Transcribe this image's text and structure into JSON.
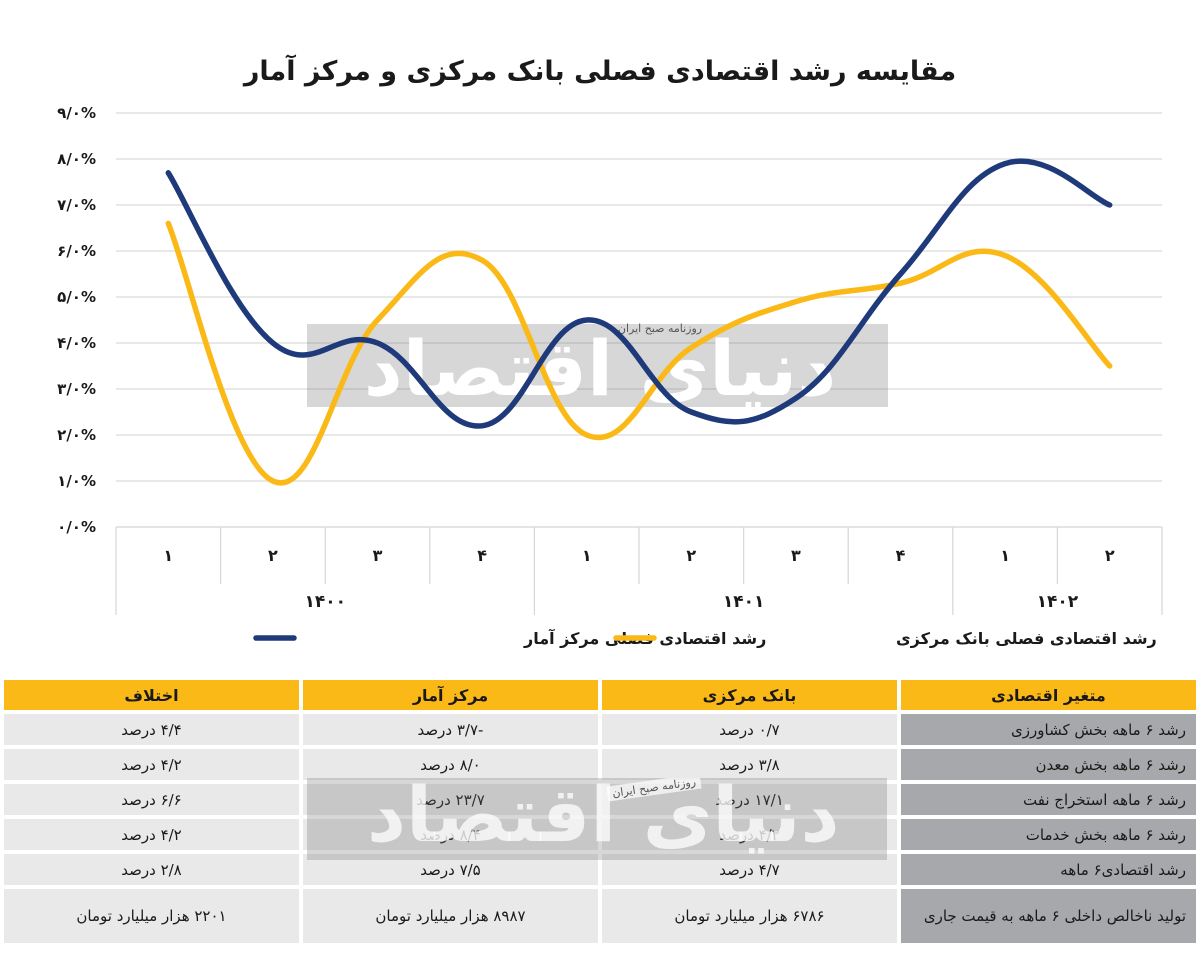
{
  "chart_data": {
    "type": "line",
    "title": "مقایسه رشد اقتصادی فصلی بانک مرکزی و مرکز آمار",
    "y_ticks": [
      "۰/۰%",
      "۱/۰%",
      "۲/۰%",
      "۳/۰%",
      "۴/۰%",
      "۵/۰%",
      "۶/۰%",
      "۷/۰%",
      "۸/۰%",
      "۹/۰%"
    ],
    "ylim": [
      0,
      9
    ],
    "categories": [
      "۱",
      "۲",
      "۳",
      "۴",
      "۱",
      "۲",
      "۳",
      "۴",
      "۱",
      "۲"
    ],
    "year_groups": [
      {
        "label": "۱۴۰۰",
        "count": 4
      },
      {
        "label": "۱۴۰۱",
        "count": 4
      },
      {
        "label": "۱۴۰۲",
        "count": 2
      }
    ],
    "series": [
      {
        "name": "رشد اقتصادی فصلی مرکز آمار",
        "color": "#1f3a7a",
        "values": [
          7.7,
          4.0,
          4.0,
          2.2,
          4.5,
          2.5,
          2.8,
          5.5,
          7.9,
          7.0
        ]
      },
      {
        "name": "رشد اقتصادی فصلی بانک مرکزی",
        "color": "#fbb917",
        "values": [
          6.6,
          1.0,
          4.5,
          5.8,
          2.0,
          3.9,
          4.9,
          5.3,
          5.9,
          3.5
        ]
      }
    ],
    "grid": true,
    "legend_position": "bottom"
  },
  "watermark": {
    "text": "دنیای اقتصاد",
    "tag": "روزنامه صبح ایران"
  },
  "table": {
    "headers": [
      "متغیر اقتصادی",
      "بانک مرکزی",
      "مرکز آمار",
      "اختلاف"
    ],
    "rows": [
      [
        "رشد ۶ ماهه بخش کشاورزی",
        "۰/۷ درصد",
        "-۳/۷ درصد",
        "۴/۴ درصد"
      ],
      [
        "رشد ۶ ماهه بخش معدن",
        "۳/۸ درصد",
        "۸/۰ درصد",
        "۴/۲ درصد"
      ],
      [
        "رشد ۶ ماهه استخراج نفت",
        "۱۷/۱ درصد",
        "۲۳/۷ درصد",
        "۶/۶ درصد"
      ],
      [
        "رشد ۶ ماهه بخش خدمات",
        "۴/۲ درصد",
        "۸/۴ درصد",
        "۴/۲ درصد"
      ],
      [
        "رشد اقتصادی۶ ماهه",
        "۴/۷ درصد",
        "۷/۵ درصد",
        "۲/۸ درصد"
      ],
      [
        "تولید ناخالص داخلی ۶ ماهه به قیمت جاری",
        "۶۷۸۶ هزار میلیارد تومان",
        "۸۹۸۷ هزار میلیارد تومان",
        "۲۲۰۱ هزار میلیارد تومان"
      ]
    ]
  }
}
